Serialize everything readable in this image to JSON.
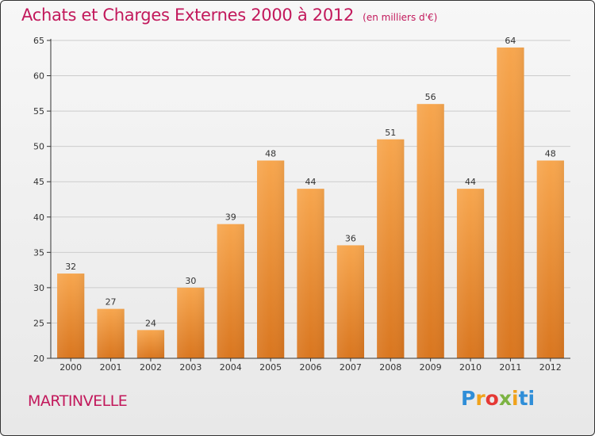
{
  "header": {
    "title": "Achats et Charges Externes 2000 à 2012",
    "subtitle": "(en milliers d'€)"
  },
  "footer": {
    "commune": "MARTINVELLE",
    "logo": [
      "P",
      "r",
      "o",
      "x",
      "i",
      "ti"
    ]
  },
  "colors": {
    "title": "#c2185b",
    "bar_top": "#f7a64e",
    "bar_bottom": "#d9761f",
    "axis": "#333333",
    "grid": "#cccccc"
  },
  "chart_data": {
    "type": "bar",
    "title": "Achats et Charges Externes 2000 à 2012",
    "categories": [
      "2000",
      "2001",
      "2002",
      "2003",
      "2004",
      "2005",
      "2006",
      "2007",
      "2008",
      "2009",
      "2010",
      "2011",
      "2012"
    ],
    "values": [
      32,
      27,
      24,
      30,
      39,
      48,
      44,
      36,
      51,
      56,
      44,
      64,
      48
    ],
    "ylim": [
      20,
      65
    ],
    "yticks": [
      20,
      25,
      30,
      35,
      40,
      45,
      50,
      55,
      60,
      65
    ],
    "xlabel": "",
    "ylabel": "",
    "grid": true,
    "data_labels": true
  }
}
